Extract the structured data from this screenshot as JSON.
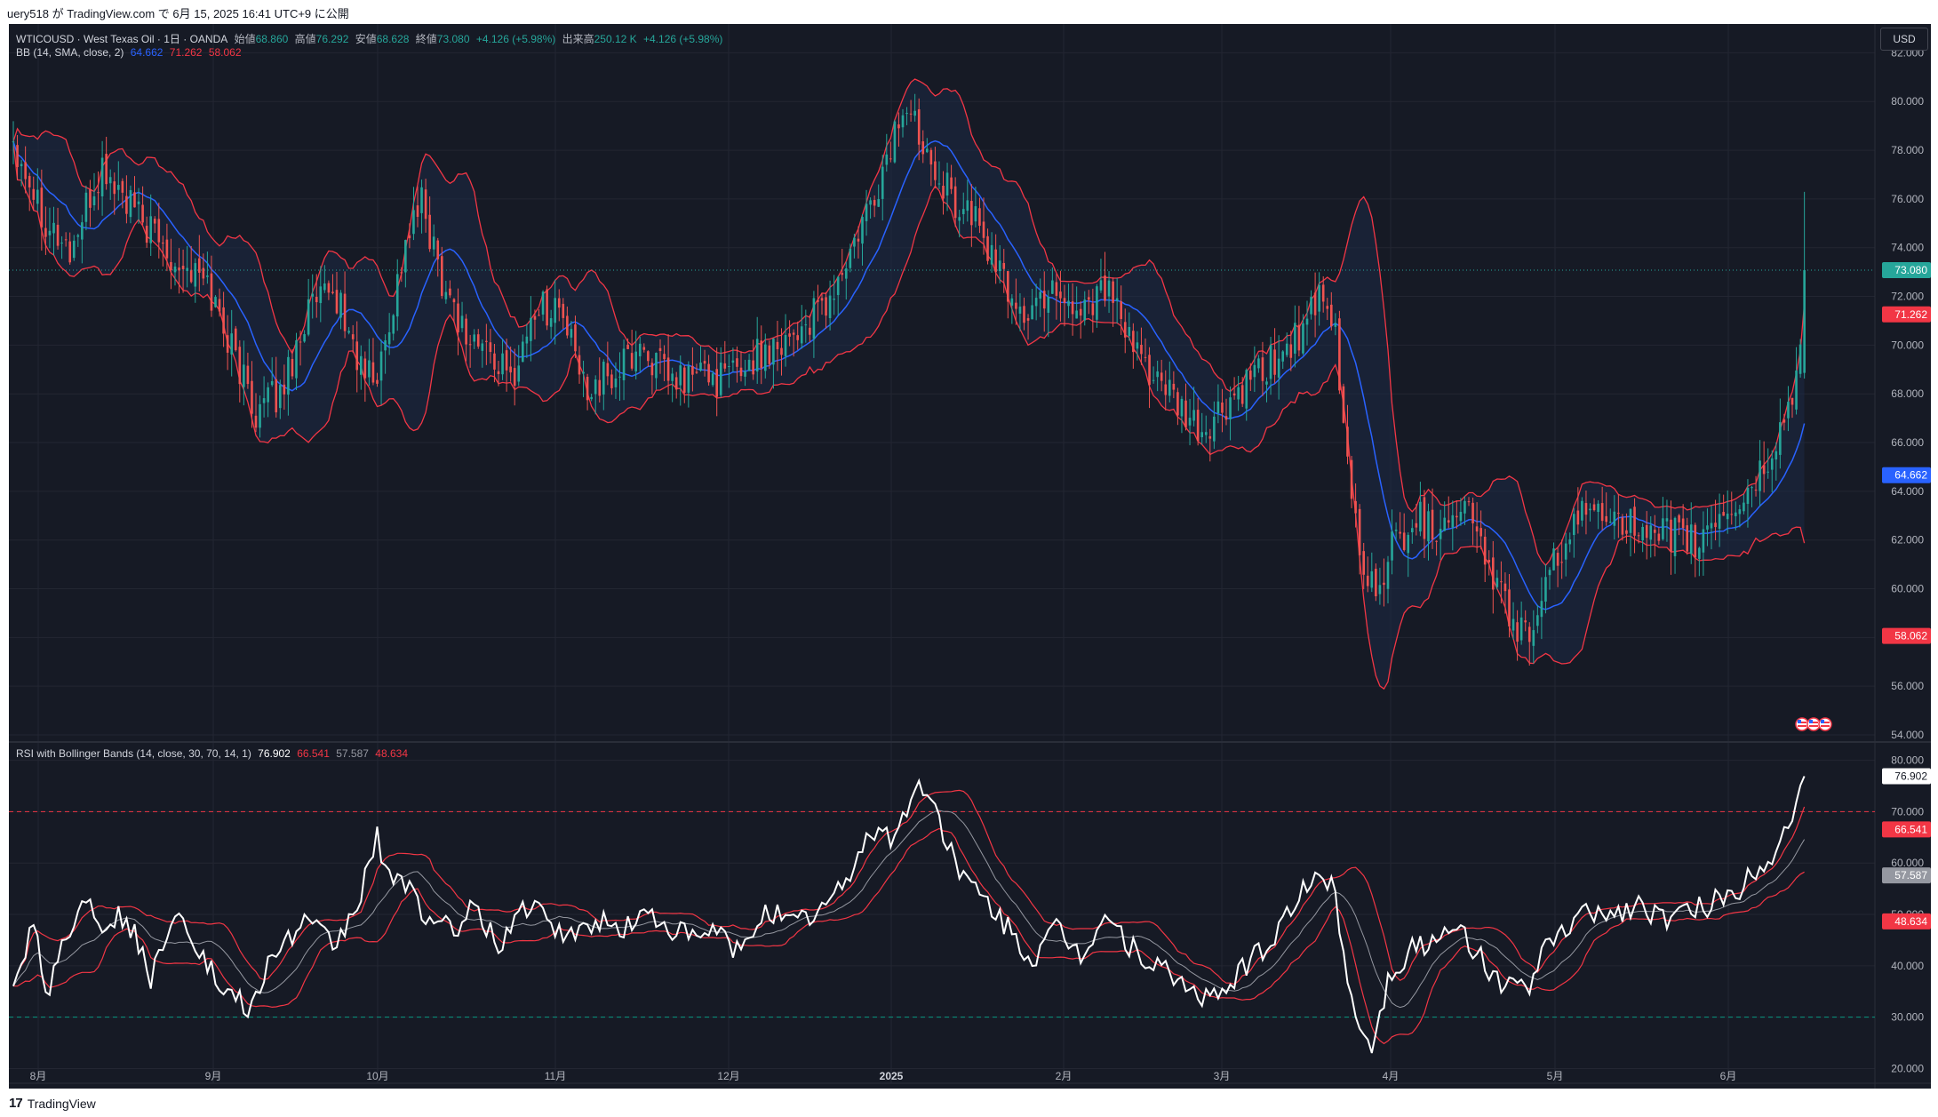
{
  "header": {
    "publish_line": "uery518 が TradingView.com で 6月 15, 2025 16:41 UTC+9 に公開"
  },
  "main_legend": {
    "symbol": "WTICOUSD · West Texas Oil · 1日 · OANDA",
    "open_label": "始値",
    "open_value": "68.860",
    "high_label": "高値",
    "high_value": "76.292",
    "low_label": "安値",
    "low_value": "68.628",
    "close_label": "終値",
    "close_value": "73.080",
    "change": "+4.126 (+5.98%)",
    "volume_label": "出来高",
    "volume_value": "250.12 K",
    "volume_change": "+4.126 (+5.98%)"
  },
  "bb_legend": {
    "name": "BB (14, SMA, close, 2)",
    "basis": "64.662",
    "upper": "71.262",
    "lower": "58.062"
  },
  "rsi_legend": {
    "name": "RSI with Bollinger Bands (14, close, 30, 70, 14, 1)",
    "rsi": "76.902",
    "upper": "66.541",
    "basis": "57.587",
    "lower": "48.634"
  },
  "currency_button": "USD",
  "footer": {
    "brand": "TradingView",
    "logo": "17"
  },
  "colors": {
    "background": "#161a25",
    "up": "#26a69a",
    "down": "#ef5350",
    "bb_band": "#f23645",
    "bb_basis": "#2962ff",
    "bb_fill": "#1e2a45",
    "rsi_line": "#ffffff",
    "rsi_band": "#f23645",
    "rsi_basis": "#9598a1",
    "level70": "#f23645",
    "level30": "#089981",
    "grid": "#232632",
    "axis_text": "#b2b5be"
  },
  "chart_data": [
    {
      "type": "candlestick",
      "title": "WTICOUSD · West Texas Oil · 1日 · OANDA",
      "ylim": [
        54,
        83
      ],
      "y_ticks": [
        "54.000",
        "56.000",
        "58.000",
        "60.000",
        "62.000",
        "64.000",
        "66.000",
        "68.000",
        "70.000",
        "72.000",
        "74.000",
        "76.000",
        "78.000",
        "80.000",
        "82.000"
      ],
      "x_ticks": [
        "8月",
        "9月",
        "10月",
        "11月",
        "12月",
        "2025",
        "2月",
        "3月",
        "4月",
        "5月",
        "6月"
      ],
      "last_price_label": "73.080",
      "bb_upper_label": "71.262",
      "bb_basis_label": "64.662",
      "bb_lower_label": "58.062",
      "close_anchors": [
        [
          0,
          78.5
        ],
        [
          8,
          75.2
        ],
        [
          14,
          73.8
        ],
        [
          22,
          77.2
        ],
        [
          32,
          75.0
        ],
        [
          40,
          73.6
        ],
        [
          48,
          72.5
        ],
        [
          55,
          69.5
        ],
        [
          60,
          67.3
        ],
        [
          66,
          68.0
        ],
        [
          73,
          71.5
        ],
        [
          80,
          72.0
        ],
        [
          86,
          69.0
        ],
        [
          90,
          68.6
        ],
        [
          97,
          74.2
        ],
        [
          101,
          75.8
        ],
        [
          106,
          72.8
        ],
        [
          112,
          70.4
        ],
        [
          118,
          69.7
        ],
        [
          123,
          68.5
        ],
        [
          129,
          71.5
        ],
        [
          135,
          71.6
        ],
        [
          141,
          68.4
        ],
        [
          148,
          68.6
        ],
        [
          155,
          70.0
        ],
        [
          163,
          68.4
        ],
        [
          170,
          68.9
        ],
        [
          175,
          68.6
        ],
        [
          182,
          69.3
        ],
        [
          189,
          70.2
        ],
        [
          196,
          70.8
        ],
        [
          202,
          71.8
        ],
        [
          208,
          74.0
        ],
        [
          214,
          76.5
        ],
        [
          220,
          79.8
        ],
        [
          226,
          78.3
        ],
        [
          232,
          76.0
        ],
        [
          238,
          75.2
        ],
        [
          245,
          72.5
        ],
        [
          251,
          71.1
        ],
        [
          257,
          72.6
        ],
        [
          263,
          71.4
        ],
        [
          270,
          72.5
        ],
        [
          276,
          70.0
        ],
        [
          282,
          68.9
        ],
        [
          288,
          67.3
        ],
        [
          294,
          66.3
        ],
        [
          300,
          67.4
        ],
        [
          306,
          68.4
        ],
        [
          312,
          69.4
        ],
        [
          318,
          70.5
        ],
        [
          323,
          71.7
        ],
        [
          327,
          70.4
        ],
        [
          329,
          66.6
        ],
        [
          333,
          61.5
        ],
        [
          337,
          59.8
        ],
        [
          341,
          61.7
        ],
        [
          347,
          63.0
        ],
        [
          352,
          62.4
        ],
        [
          356,
          63.5
        ],
        [
          361,
          63.0
        ],
        [
          365,
          60.8
        ],
        [
          369,
          59.3
        ],
        [
          374,
          58.0
        ],
        [
          378,
          59.2
        ],
        [
          382,
          61.5
        ],
        [
          386,
          62.5
        ],
        [
          392,
          63.5
        ],
        [
          398,
          63.0
        ],
        [
          404,
          61.7
        ],
        [
          410,
          62.3
        ],
        [
          416,
          61.8
        ],
        [
          422,
          63.0
        ],
        [
          428,
          63.6
        ],
        [
          434,
          65.2
        ],
        [
          438,
          66.8
        ],
        [
          441,
          68.5
        ],
        [
          443,
          73.08
        ]
      ]
    },
    {
      "type": "line",
      "title": "RSI with Bollinger Bands (14, close, 30, 70, 14, 1)",
      "ylim": [
        18,
        82
      ],
      "y_ticks": [
        "20.000",
        "30.000",
        "40.000",
        "50.000",
        "60.000",
        "70.000",
        "80.000"
      ],
      "levels": [
        70,
        30
      ],
      "rsi_label": "76.902",
      "upper_label": "66.541",
      "basis_label": "57.587",
      "lower_label": "48.634",
      "rsi_anchors": [
        [
          0,
          38.5
        ],
        [
          6,
          48.2
        ],
        [
          8,
          34.0
        ],
        [
          12,
          44.0
        ],
        [
          18,
          53.0
        ],
        [
          22,
          48.5
        ],
        [
          28,
          49.5
        ],
        [
          34,
          38.0
        ],
        [
          40,
          51.5
        ],
        [
          46,
          43.5
        ],
        [
          50,
          37.0
        ],
        [
          55,
          33.0
        ],
        [
          59,
          32.0
        ],
        [
          65,
          43.0
        ],
        [
          72,
          48.0
        ],
        [
          80,
          44.0
        ],
        [
          86,
          54.0
        ],
        [
          90,
          65.0
        ],
        [
          94,
          55.0
        ],
        [
          98,
          57.0
        ],
        [
          102,
          49.0
        ],
        [
          108,
          47.0
        ],
        [
          114,
          51.0
        ],
        [
          120,
          44.0
        ],
        [
          126,
          51.5
        ],
        [
          132,
          49.0
        ],
        [
          138,
          45.0
        ],
        [
          144,
          49.0
        ],
        [
          150,
          47.0
        ],
        [
          156,
          50.0
        ],
        [
          162,
          48.0
        ],
        [
          168,
          45.0
        ],
        [
          174,
          47.0
        ],
        [
          180,
          42.0
        ],
        [
          186,
          52.0
        ],
        [
          192,
          48.0
        ],
        [
          198,
          50.0
        ],
        [
          204,
          54.0
        ],
        [
          210,
          63.0
        ],
        [
          214,
          68.0
        ],
        [
          218,
          64.0
        ],
        [
          222,
          73.0
        ],
        [
          226,
          75.0
        ],
        [
          230,
          66.0
        ],
        [
          236,
          56.0
        ],
        [
          242,
          51.0
        ],
        [
          248,
          45.0
        ],
        [
          252,
          41.0
        ],
        [
          258,
          47.0
        ],
        [
          264,
          42.0
        ],
        [
          270,
          50.0
        ],
        [
          276,
          44.0
        ],
        [
          282,
          40.0
        ],
        [
          288,
          37.0
        ],
        [
          294,
          34.0
        ],
        [
          298,
          33.0
        ],
        [
          304,
          40.0
        ],
        [
          310,
          43.0
        ],
        [
          316,
          52.0
        ],
        [
          322,
          56.5
        ],
        [
          326,
          57.0
        ],
        [
          328,
          48.0
        ],
        [
          332,
          30.0
        ],
        [
          336,
          24.5
        ],
        [
          340,
          37.0
        ],
        [
          346,
          44.0
        ],
        [
          352,
          44.0
        ],
        [
          358,
          47.0
        ],
        [
          364,
          40.0
        ],
        [
          368,
          37.0
        ],
        [
          374,
          35.0
        ],
        [
          378,
          42.0
        ],
        [
          384,
          47.0
        ],
        [
          390,
          51.0
        ],
        [
          396,
          50.0
        ],
        [
          402,
          52.0
        ],
        [
          408,
          49.0
        ],
        [
          414,
          50.0
        ],
        [
          420,
          52.0
        ],
        [
          426,
          54.0
        ],
        [
          432,
          60.0
        ],
        [
          436,
          62.0
        ],
        [
          440,
          70.0
        ],
        [
          443,
          76.902
        ]
      ]
    }
  ]
}
